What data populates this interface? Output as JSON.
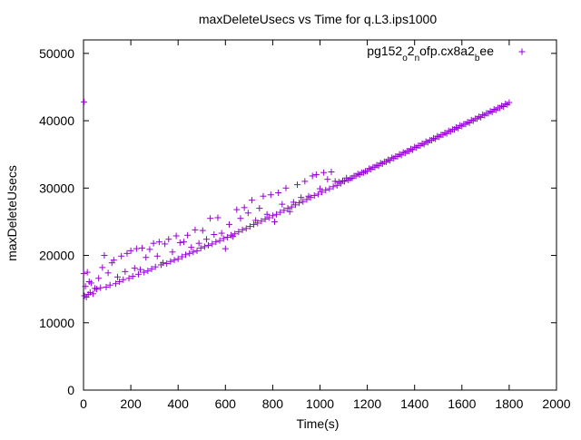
{
  "chart_data": {
    "type": "scatter",
    "title": "maxDeleteUsecs vs Time for q.L3.ips1000",
    "xlabel": "Time(s)",
    "ylabel": "maxDeleteUsecs",
    "xlim": [
      0,
      2000
    ],
    "ylim": [
      0,
      52000
    ],
    "xticks": [
      0,
      200,
      400,
      600,
      800,
      1000,
      1200,
      1400,
      1600,
      1800,
      2000
    ],
    "yticks": [
      0,
      10000,
      20000,
      30000,
      40000,
      50000
    ],
    "grid": false,
    "legend_position": "top-right",
    "marker": "plus",
    "series": [
      {
        "name_parts": [
          {
            "text": "pg152",
            "shift": "base"
          },
          {
            "text": "o",
            "shift": "sub"
          },
          {
            "text": "2",
            "shift": "base"
          },
          {
            "text": "n",
            "shift": "sub"
          },
          {
            "text": "ofp.cx8a2",
            "shift": "base"
          },
          {
            "text": "b",
            "shift": "sub"
          },
          {
            "text": "ee",
            "shift": "base"
          }
        ],
        "color": "#9400d3",
        "points": [
          [
            2,
            42800
          ],
          [
            1,
            17300
          ],
          [
            4,
            14000
          ],
          [
            8,
            15400
          ],
          [
            12,
            13800
          ],
          [
            16,
            17500
          ],
          [
            20,
            14200
          ],
          [
            24,
            16100
          ],
          [
            28,
            14500
          ],
          [
            32,
            15900
          ],
          [
            40,
            14300
          ],
          [
            48,
            15100
          ],
          [
            56,
            15000
          ],
          [
            64,
            16600
          ],
          [
            72,
            15200
          ],
          [
            80,
            18200
          ],
          [
            88,
            20000
          ],
          [
            96,
            15300
          ],
          [
            104,
            17400
          ],
          [
            112,
            15600
          ],
          [
            120,
            18900
          ],
          [
            128,
            19300
          ],
          [
            136,
            15800
          ],
          [
            144,
            16800
          ],
          [
            152,
            16100
          ],
          [
            160,
            19900
          ],
          [
            168,
            16400
          ],
          [
            176,
            17600
          ],
          [
            184,
            20300
          ],
          [
            192,
            16600
          ],
          [
            200,
            20700
          ],
          [
            208,
            16900
          ],
          [
            216,
            18100
          ],
          [
            224,
            21000
          ],
          [
            232,
            17200
          ],
          [
            240,
            17900
          ],
          [
            248,
            21100
          ],
          [
            256,
            17500
          ],
          [
            264,
            19700
          ],
          [
            272,
            17700
          ],
          [
            280,
            20900
          ],
          [
            288,
            18000
          ],
          [
            296,
            21800
          ],
          [
            304,
            18300
          ],
          [
            312,
            19900
          ],
          [
            320,
            22000
          ],
          [
            328,
            18600
          ],
          [
            336,
            18900
          ],
          [
            344,
            21700
          ],
          [
            352,
            18800
          ],
          [
            360,
            22400
          ],
          [
            368,
            19100
          ],
          [
            376,
            20500
          ],
          [
            384,
            19300
          ],
          [
            392,
            22900
          ],
          [
            400,
            19500
          ],
          [
            408,
            21900
          ],
          [
            416,
            19800
          ],
          [
            424,
            22000
          ],
          [
            432,
            20100
          ],
          [
            440,
            23000
          ],
          [
            448,
            20300
          ],
          [
            456,
            21200
          ],
          [
            464,
            20500
          ],
          [
            472,
            23800
          ],
          [
            480,
            20700
          ],
          [
            488,
            21800
          ],
          [
            496,
            21100
          ],
          [
            504,
            23700
          ],
          [
            512,
            21300
          ],
          [
            520,
            22400
          ],
          [
            528,
            21500
          ],
          [
            536,
            25500
          ],
          [
            544,
            21700
          ],
          [
            552,
            23100
          ],
          [
            560,
            22000
          ],
          [
            568,
            25600
          ],
          [
            576,
            22200
          ],
          [
            584,
            23300
          ],
          [
            592,
            22500
          ],
          [
            600,
            21000
          ],
          [
            608,
            22700
          ],
          [
            616,
            24600
          ],
          [
            624,
            23000
          ],
          [
            632,
            22800
          ],
          [
            640,
            23200
          ],
          [
            648,
            26800
          ],
          [
            656,
            23500
          ],
          [
            664,
            25500
          ],
          [
            672,
            23800
          ],
          [
            680,
            27100
          ],
          [
            688,
            24000
          ],
          [
            696,
            26300
          ],
          [
            704,
            24300
          ],
          [
            712,
            28200
          ],
          [
            720,
            24600
          ],
          [
            728,
            25200
          ],
          [
            736,
            24800
          ],
          [
            744,
            27000
          ],
          [
            752,
            25100
          ],
          [
            760,
            28800
          ],
          [
            768,
            25400
          ],
          [
            776,
            26100
          ],
          [
            784,
            25600
          ],
          [
            792,
            29000
          ],
          [
            800,
            25900
          ],
          [
            808,
            25000
          ],
          [
            816,
            26100
          ],
          [
            824,
            29300
          ],
          [
            832,
            26400
          ],
          [
            840,
            27600
          ],
          [
            848,
            26700
          ],
          [
            856,
            30000
          ],
          [
            864,
            27000
          ],
          [
            872,
            26500
          ],
          [
            880,
            27200
          ],
          [
            888,
            27900
          ],
          [
            896,
            27500
          ],
          [
            904,
            30500
          ],
          [
            912,
            27800
          ],
          [
            920,
            28600
          ],
          [
            928,
            28000
          ],
          [
            936,
            31000
          ],
          [
            944,
            28300
          ],
          [
            952,
            28800
          ],
          [
            960,
            28600
          ],
          [
            968,
            31800
          ],
          [
            976,
            28900
          ],
          [
            984,
            32000
          ],
          [
            992,
            29100
          ],
          [
            1000,
            29900
          ],
          [
            1008,
            29400
          ],
          [
            1016,
            32300
          ],
          [
            1024,
            29700
          ],
          [
            1032,
            31300
          ],
          [
            1040,
            29900
          ],
          [
            1048,
            32400
          ],
          [
            1056,
            30200
          ],
          [
            1064,
            31000
          ],
          [
            1072,
            30400
          ],
          [
            1080,
            30900
          ],
          [
            1088,
            30700
          ],
          [
            1096,
            31100
          ],
          [
            1104,
            31000
          ],
          [
            1112,
            31500
          ],
          [
            1120,
            31200
          ],
          [
            1128,
            31400
          ],
          [
            1136,
            31500
          ],
          [
            1144,
            31800
          ],
          [
            1152,
            31800
          ],
          [
            1160,
            32100
          ],
          [
            1168,
            32000
          ],
          [
            1176,
            32300
          ],
          [
            1184,
            32300
          ],
          [
            1192,
            32500
          ],
          [
            1200,
            32500
          ],
          [
            1208,
            32900
          ],
          [
            1216,
            32800
          ],
          [
            1224,
            33100
          ],
          [
            1232,
            33100
          ],
          [
            1240,
            33400
          ],
          [
            1248,
            33300
          ],
          [
            1256,
            33700
          ],
          [
            1264,
            33600
          ],
          [
            1272,
            33900
          ],
          [
            1280,
            33900
          ],
          [
            1288,
            34200
          ],
          [
            1296,
            34100
          ],
          [
            1304,
            34500
          ],
          [
            1312,
            34400
          ],
          [
            1320,
            34700
          ],
          [
            1328,
            34700
          ],
          [
            1336,
            35000
          ],
          [
            1344,
            34900
          ],
          [
            1352,
            35300
          ],
          [
            1360,
            35200
          ],
          [
            1368,
            35500
          ],
          [
            1376,
            35500
          ],
          [
            1384,
            35800
          ],
          [
            1392,
            35700
          ],
          [
            1400,
            36100
          ],
          [
            1408,
            36000
          ],
          [
            1416,
            36300
          ],
          [
            1424,
            36300
          ],
          [
            1432,
            36600
          ],
          [
            1440,
            36500
          ],
          [
            1448,
            36900
          ],
          [
            1456,
            36800
          ],
          [
            1464,
            37100
          ],
          [
            1472,
            37100
          ],
          [
            1480,
            37400
          ],
          [
            1488,
            37300
          ],
          [
            1496,
            37700
          ],
          [
            1504,
            37600
          ],
          [
            1512,
            37900
          ],
          [
            1520,
            37900
          ],
          [
            1528,
            38200
          ],
          [
            1536,
            38100
          ],
          [
            1544,
            38500
          ],
          [
            1552,
            38400
          ],
          [
            1560,
            38700
          ],
          [
            1568,
            38700
          ],
          [
            1576,
            39000
          ],
          [
            1584,
            38900
          ],
          [
            1592,
            39300
          ],
          [
            1600,
            39200
          ],
          [
            1608,
            39500
          ],
          [
            1616,
            39500
          ],
          [
            1624,
            39800
          ],
          [
            1632,
            39700
          ],
          [
            1640,
            40100
          ],
          [
            1648,
            40000
          ],
          [
            1656,
            40300
          ],
          [
            1664,
            40300
          ],
          [
            1672,
            40600
          ],
          [
            1680,
            40500
          ],
          [
            1688,
            40900
          ],
          [
            1696,
            40800
          ],
          [
            1704,
            41100
          ],
          [
            1712,
            41100
          ],
          [
            1720,
            41400
          ],
          [
            1728,
            41300
          ],
          [
            1736,
            41700
          ],
          [
            1744,
            41600
          ],
          [
            1752,
            41900
          ],
          [
            1760,
            41900
          ],
          [
            1768,
            42200
          ],
          [
            1776,
            42100
          ],
          [
            1784,
            42500
          ],
          [
            1792,
            42400
          ],
          [
            1800,
            42700
          ]
        ]
      }
    ]
  }
}
